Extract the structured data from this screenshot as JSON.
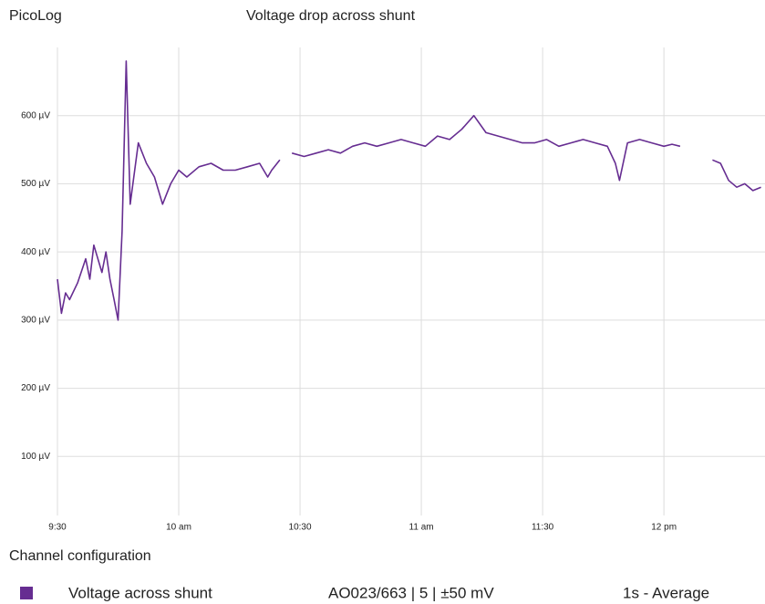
{
  "app_name": "PicoLog",
  "chart_data": {
    "type": "line",
    "title": "Voltage drop across shunt",
    "x": [
      "09:30",
      "09:31",
      "09:32",
      "09:33",
      "09:35",
      "09:37",
      "09:38",
      "09:39",
      "09:41",
      "09:42",
      "09:43",
      "09:44",
      "09:45",
      "09:46",
      "09:47",
      "09:48",
      "09:50",
      "09:52",
      "09:54",
      "09:56",
      "09:58",
      "10:00",
      "10:02",
      "10:05",
      "10:08",
      "10:11",
      "10:14",
      "10:17",
      "10:20",
      "10:22",
      "10:23",
      "10:25",
      "10:26",
      "10:28",
      "10:31",
      "10:34",
      "10:37",
      "10:40",
      "10:43",
      "10:46",
      "10:49",
      "10:52",
      "10:55",
      "10:58",
      "11:01",
      "11:04",
      "11:07",
      "11:10",
      "11:13",
      "11:16",
      "11:19",
      "11:22",
      "11:25",
      "11:28",
      "11:31",
      "11:34",
      "11:37",
      "11:40",
      "11:43",
      "11:46",
      "11:48",
      "11:49",
      "11:51",
      "11:54",
      "11:57",
      "12:00",
      "12:02",
      "12:04",
      "12:07",
      "12:12",
      "12:14",
      "12:16",
      "12:18",
      "12:20",
      "12:22",
      "12:24"
    ],
    "series": [
      {
        "name": "Voltage across shunt",
        "color": "#662d91",
        "values": [
          360,
          310,
          340,
          330,
          355,
          390,
          360,
          410,
          370,
          400,
          360,
          330,
          300,
          430,
          680,
          470,
          560,
          530,
          510,
          470,
          500,
          520,
          510,
          525,
          530,
          520,
          520,
          525,
          530,
          510,
          520,
          535,
          null,
          545,
          540,
          545,
          550,
          545,
          555,
          560,
          555,
          560,
          565,
          560,
          555,
          570,
          565,
          580,
          600,
          575,
          570,
          565,
          560,
          560,
          565,
          555,
          560,
          565,
          560,
          555,
          530,
          505,
          560,
          565,
          560,
          555,
          558,
          555,
          null,
          535,
          530,
          505,
          495,
          500,
          490,
          495
        ]
      }
    ],
    "xlim": [
      "09:30",
      "12:25"
    ],
    "xticks": [
      {
        "value": "09:30",
        "label": "9:30"
      },
      {
        "value": "10:00",
        "label": "10 am"
      },
      {
        "value": "10:30",
        "label": "10:30"
      },
      {
        "value": "11:00",
        "label": "11 am"
      },
      {
        "value": "11:30",
        "label": "11:30"
      },
      {
        "value": "12:00",
        "label": "12 pm"
      }
    ],
    "ylim": [
      0,
      700
    ],
    "yticks": [
      {
        "value": 100,
        "label": "100 µV"
      },
      {
        "value": 200,
        "label": "200 µV"
      },
      {
        "value": 300,
        "label": "300 µV"
      },
      {
        "value": 400,
        "label": "400 µV"
      },
      {
        "value": 500,
        "label": "500 µV"
      },
      {
        "value": 600,
        "label": "600 µV"
      }
    ],
    "grid": true
  },
  "channel_panel": {
    "title": "Channel configuration",
    "device": "AO023/663 | 5 | ±50 mV",
    "sampling": "1s - Average"
  }
}
